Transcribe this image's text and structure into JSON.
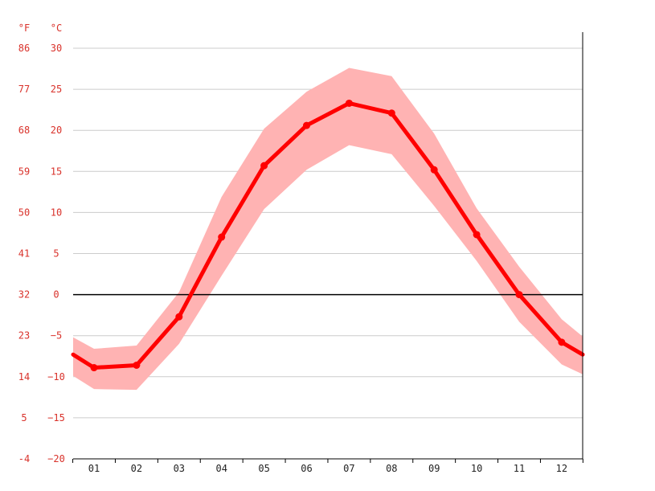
{
  "chart_data": {
    "type": "line",
    "categories": [
      "01",
      "02",
      "03",
      "04",
      "05",
      "06",
      "07",
      "08",
      "09",
      "10",
      "11",
      "12"
    ],
    "series": [
      {
        "values": [
          -8.9,
          -8.6,
          -2.7,
          7.0,
          15.7,
          20.6,
          23.3,
          22.1,
          15.2,
          7.3,
          0.0,
          -5.8
        ]
      }
    ],
    "band": {
      "upper": [
        -6.6,
        -6.2,
        0.3,
        11.9,
        20.2,
        24.7,
        27.6,
        26.6,
        19.6,
        10.5,
        3.4,
        -3.0
      ],
      "lower": [
        -11.5,
        -11.6,
        -6.0,
        2.3,
        10.4,
        15.2,
        18.2,
        17.1,
        10.8,
        4.1,
        -3.3,
        -8.5
      ]
    },
    "edges": {
      "start": {
        "value": -7.3,
        "upper": -5.2,
        "lower": -9.9
      },
      "end": {
        "value": -7.3,
        "upper": -5.1,
        "lower": -9.7
      }
    },
    "y_axis_c": {
      "unit": "°C",
      "ticks": [
        "30",
        "25",
        "20",
        "15",
        "10",
        "5",
        "0",
        "−5",
        "−10",
        "−15",
        "−20"
      ],
      "ylim": [
        -20,
        30
      ]
    },
    "y_axis_f": {
      "unit": "°F",
      "ticks": [
        "86",
        "77",
        "68",
        "59",
        "50",
        "41",
        "32",
        "23",
        "14",
        "5",
        "-4"
      ]
    },
    "grid": true,
    "legend": "none",
    "colors": {
      "line": "#ff0000",
      "band": "#ffb3b3",
      "grid": "#cccccc",
      "zero_line": "#000000",
      "left_axis_text": "#d9322b"
    }
  }
}
